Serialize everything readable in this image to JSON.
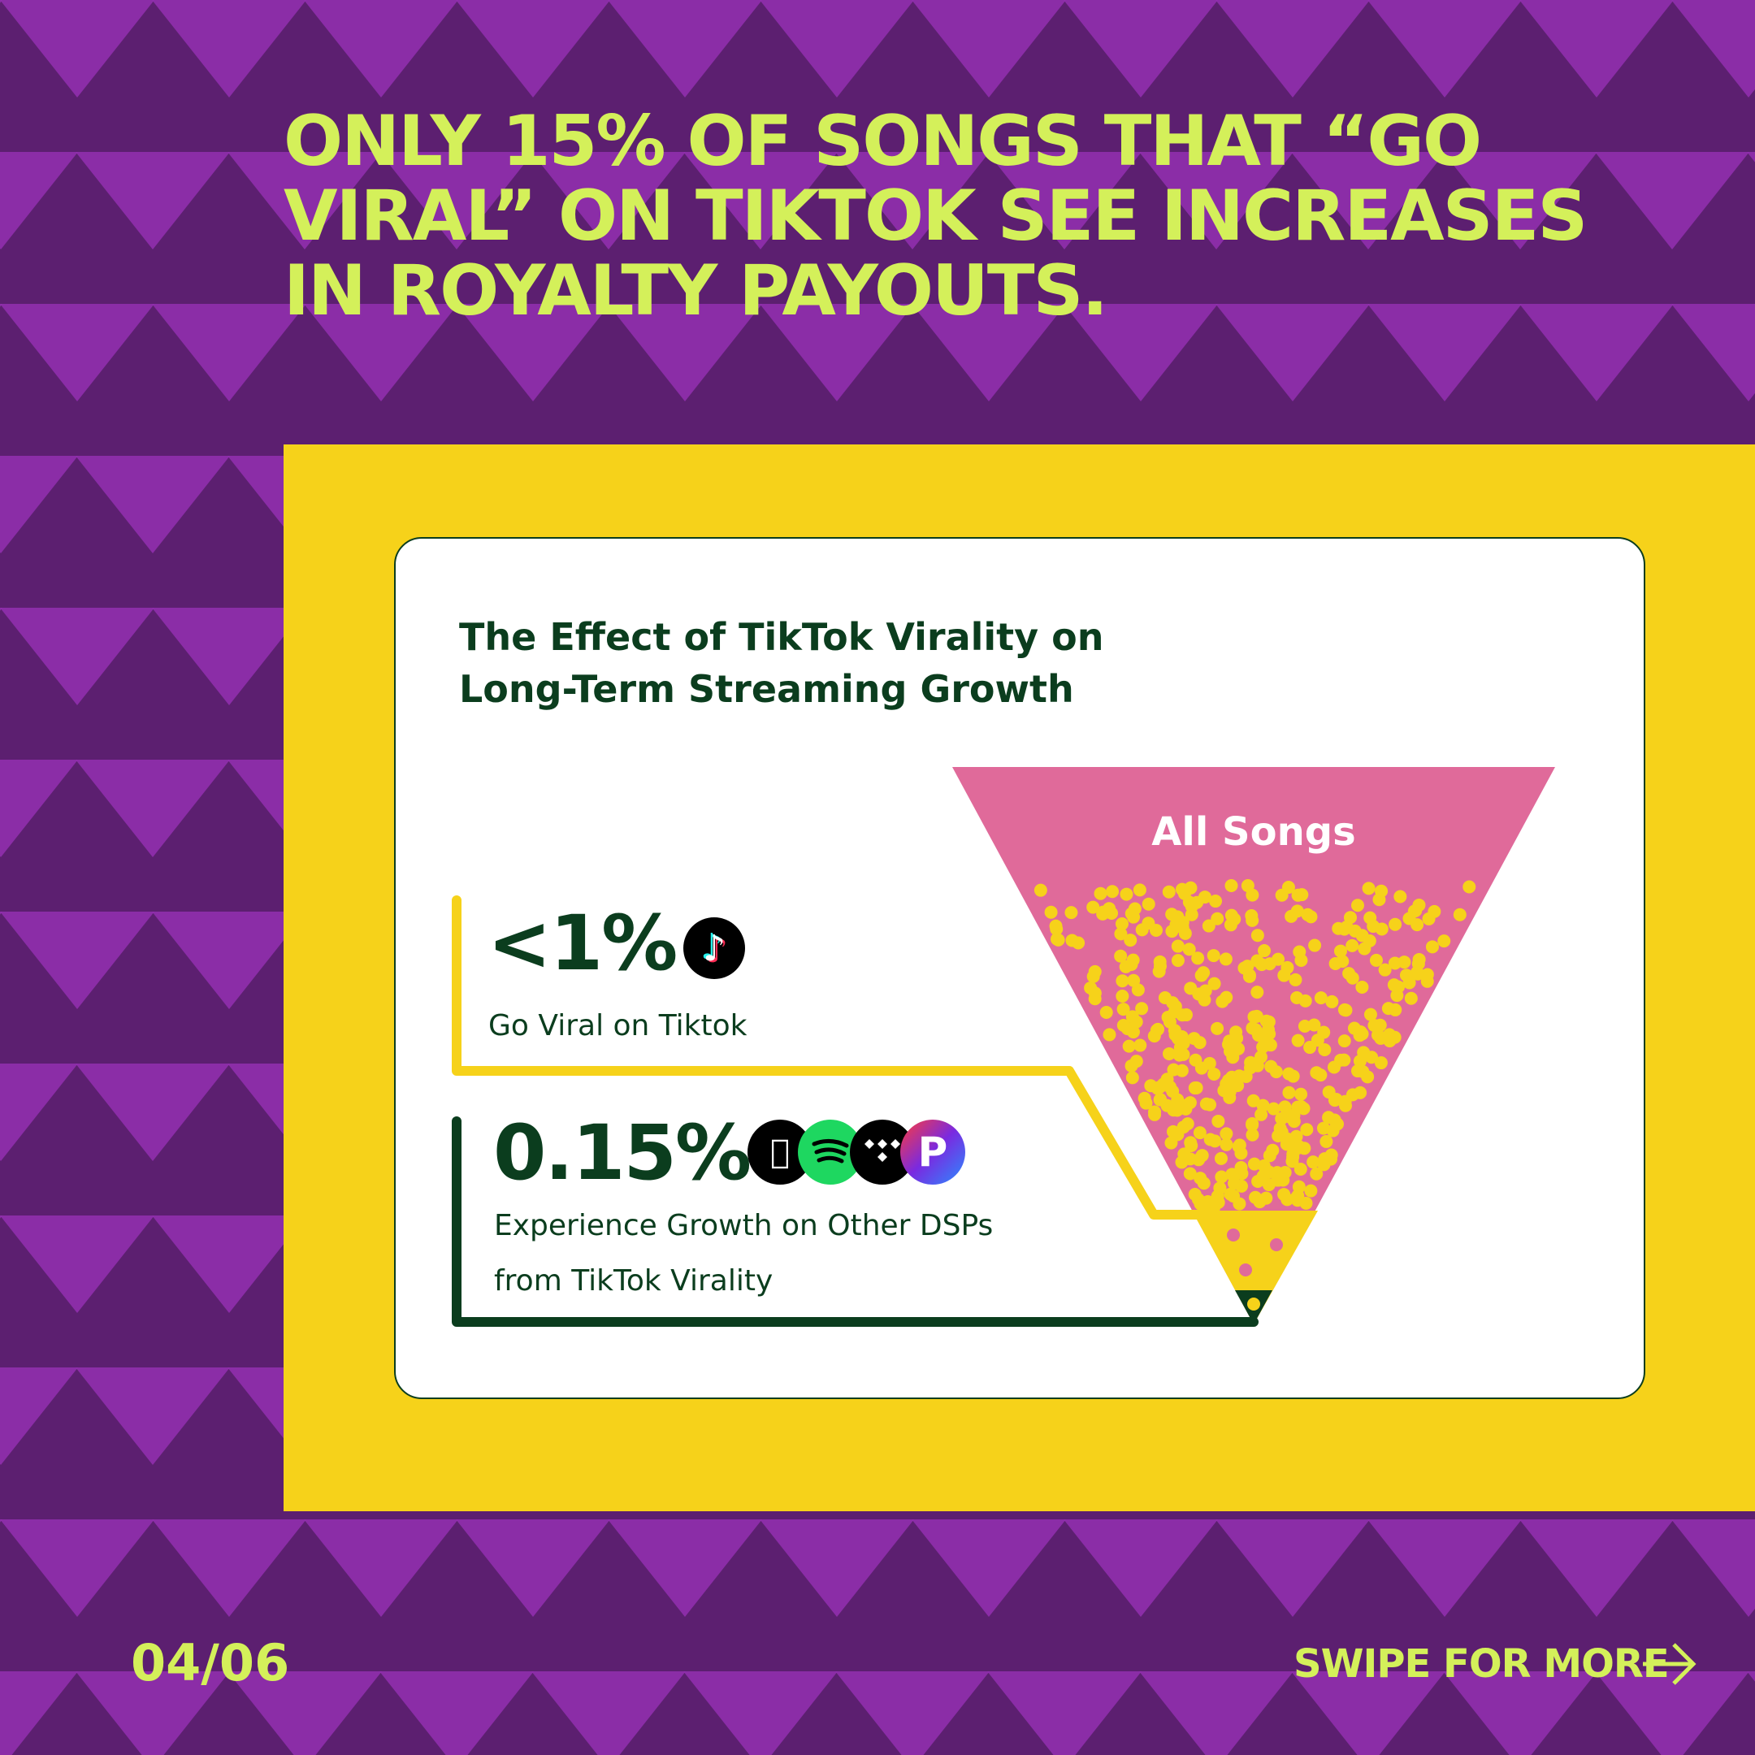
{
  "headline": "Only 15% of songs that “go viral” on TikTok see increases in royalty payouts.",
  "chart": {
    "title_line1": "The Effect of TikTok Virality on",
    "title_line2": "Long-Term Streaming Growth",
    "funnel_label": "All Songs",
    "stat1": {
      "value": "<1%",
      "label": "Go Viral on Tiktok",
      "icon": "tiktok-icon"
    },
    "stat2": {
      "value": "0.15%",
      "label_line1": "Experience Growth on Other DSPs",
      "label_line2": "from TikTok Virality",
      "icons": [
        "apple-music-icon",
        "spotify-icon",
        "tidal-icon",
        "pandora-icon"
      ]
    }
  },
  "footer": {
    "page": "04/06",
    "swipe": "swipe for more",
    "arrow_icon": "arrow-right-icon"
  },
  "colors": {
    "background": "#5c1f70",
    "triangles": "#9330b0",
    "accent": "#d4f05a",
    "panel": "#f6d21a",
    "dark_green": "#0b3d1e",
    "funnel_pink": "#e06a9a",
    "dots": "#f6d21a"
  }
}
